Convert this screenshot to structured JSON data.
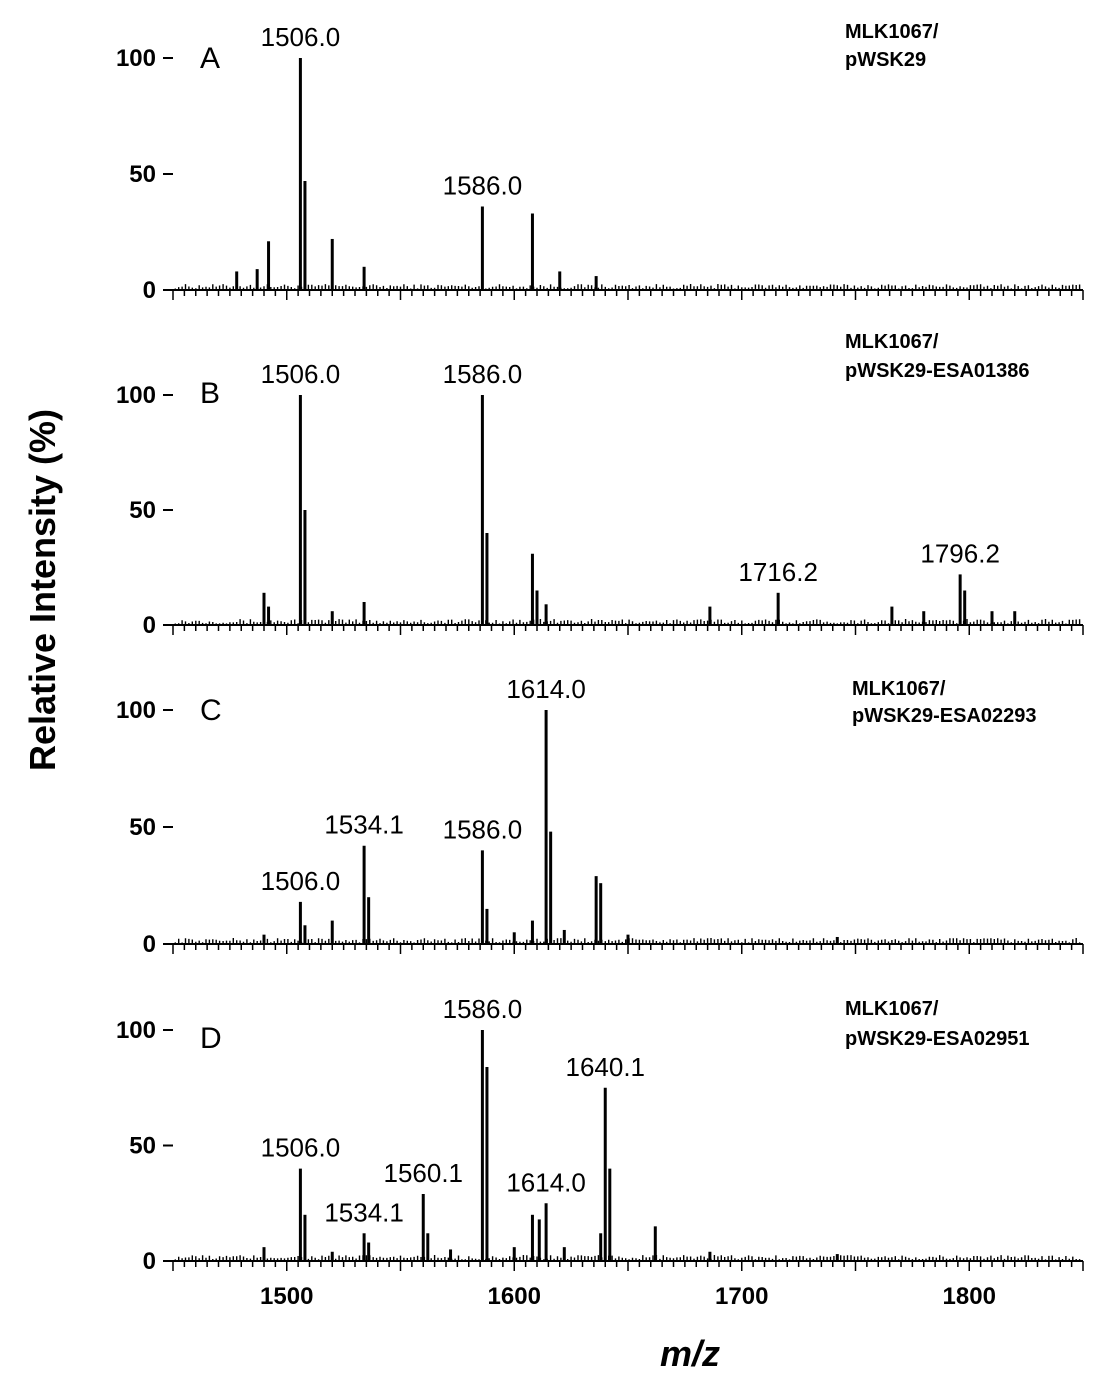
{
  "chart_data": {
    "type": "line",
    "ylabel": "Relative Intensity (%)",
    "xlabel": "m/z",
    "xlim": [
      1450,
      1850
    ],
    "ylim": [
      0,
      100
    ],
    "x_ticks": [
      1500,
      1600,
      1700,
      1800
    ],
    "y_ticks": [
      0,
      50,
      100
    ],
    "panels": [
      {
        "letter": "A",
        "strain_line1": "MLK1067/",
        "strain_line2": "pWSK29",
        "peaks": [
          {
            "x": 1478,
            "y": 8
          },
          {
            "x": 1487,
            "y": 9
          },
          {
            "x": 1492,
            "y": 21
          },
          {
            "x": 1506,
            "y": 100
          },
          {
            "x": 1508,
            "y": 47
          },
          {
            "x": 1520,
            "y": 22
          },
          {
            "x": 1534,
            "y": 10
          },
          {
            "x": 1586,
            "y": 36
          },
          {
            "x": 1608,
            "y": 33
          },
          {
            "x": 1620,
            "y": 8
          },
          {
            "x": 1636,
            "y": 6
          }
        ],
        "labels": [
          {
            "text": "1506.0",
            "x": 1506,
            "y": 100
          },
          {
            "text": "1586.0",
            "x": 1586,
            "y": 36
          }
        ]
      },
      {
        "letter": "B",
        "strain_line1": "MLK1067/",
        "strain_line2": "pWSK29-ESA01386",
        "peaks": [
          {
            "x": 1490,
            "y": 14
          },
          {
            "x": 1492,
            "y": 8
          },
          {
            "x": 1506,
            "y": 100
          },
          {
            "x": 1508,
            "y": 50
          },
          {
            "x": 1520,
            "y": 6
          },
          {
            "x": 1534,
            "y": 10
          },
          {
            "x": 1586,
            "y": 100
          },
          {
            "x": 1588,
            "y": 40
          },
          {
            "x": 1608,
            "y": 31
          },
          {
            "x": 1610,
            "y": 15
          },
          {
            "x": 1614,
            "y": 9
          },
          {
            "x": 1686,
            "y": 8
          },
          {
            "x": 1716,
            "y": 14
          },
          {
            "x": 1766,
            "y": 8
          },
          {
            "x": 1780,
            "y": 6
          },
          {
            "x": 1796,
            "y": 22
          },
          {
            "x": 1798,
            "y": 15
          },
          {
            "x": 1810,
            "y": 6
          },
          {
            "x": 1820,
            "y": 6
          }
        ],
        "labels": [
          {
            "text": "1506.0",
            "x": 1506,
            "y": 100
          },
          {
            "text": "1586.0",
            "x": 1586,
            "y": 100
          },
          {
            "text": "1716.2",
            "x": 1716,
            "y": 14
          },
          {
            "text": "1796.2",
            "x": 1796,
            "y": 22
          }
        ]
      },
      {
        "letter": "C",
        "strain_line1": "MLK1067/",
        "strain_line2": "pWSK29-ESA02293",
        "peaks": [
          {
            "x": 1490,
            "y": 4
          },
          {
            "x": 1506,
            "y": 18
          },
          {
            "x": 1508,
            "y": 8
          },
          {
            "x": 1520,
            "y": 10
          },
          {
            "x": 1534,
            "y": 42
          },
          {
            "x": 1536,
            "y": 20
          },
          {
            "x": 1586,
            "y": 40
          },
          {
            "x": 1588,
            "y": 15
          },
          {
            "x": 1600,
            "y": 5
          },
          {
            "x": 1608,
            "y": 10
          },
          {
            "x": 1614,
            "y": 100
          },
          {
            "x": 1616,
            "y": 48
          },
          {
            "x": 1622,
            "y": 6
          },
          {
            "x": 1636,
            "y": 29
          },
          {
            "x": 1638,
            "y": 26
          },
          {
            "x": 1650,
            "y": 4
          },
          {
            "x": 1742,
            "y": 3
          }
        ],
        "labels": [
          {
            "text": "1506.0",
            "x": 1506,
            "y": 18
          },
          {
            "text": "1534.1",
            "x": 1534,
            "y": 42
          },
          {
            "text": "1586.0",
            "x": 1586,
            "y": 40
          },
          {
            "text": "1614.0",
            "x": 1614,
            "y": 100
          }
        ]
      },
      {
        "letter": "D",
        "strain_line1": "MLK1067/",
        "strain_line2": "pWSK29-ESA02951",
        "peaks": [
          {
            "x": 1490,
            "y": 6
          },
          {
            "x": 1506,
            "y": 40
          },
          {
            "x": 1508,
            "y": 20
          },
          {
            "x": 1520,
            "y": 4
          },
          {
            "x": 1534,
            "y": 12
          },
          {
            "x": 1536,
            "y": 8
          },
          {
            "x": 1560,
            "y": 29
          },
          {
            "x": 1562,
            "y": 12
          },
          {
            "x": 1572,
            "y": 5
          },
          {
            "x": 1586,
            "y": 100
          },
          {
            "x": 1588,
            "y": 84
          },
          {
            "x": 1600,
            "y": 6
          },
          {
            "x": 1608,
            "y": 20
          },
          {
            "x": 1611,
            "y": 18
          },
          {
            "x": 1614,
            "y": 25
          },
          {
            "x": 1622,
            "y": 6
          },
          {
            "x": 1638,
            "y": 12
          },
          {
            "x": 1640,
            "y": 75
          },
          {
            "x": 1642,
            "y": 40
          },
          {
            "x": 1662,
            "y": 15
          },
          {
            "x": 1686,
            "y": 4
          },
          {
            "x": 1742,
            "y": 3
          }
        ],
        "labels": [
          {
            "text": "1506.0",
            "x": 1506,
            "y": 40
          },
          {
            "text": "1534.1",
            "x": 1534,
            "y": 12
          },
          {
            "text": "1560.1",
            "x": 1560,
            "y": 29
          },
          {
            "text": "1586.0",
            "x": 1586,
            "y": 100
          },
          {
            "text": "1614.0",
            "x": 1614,
            "y": 25
          },
          {
            "text": "1640.1",
            "x": 1640,
            "y": 75
          }
        ]
      }
    ]
  }
}
